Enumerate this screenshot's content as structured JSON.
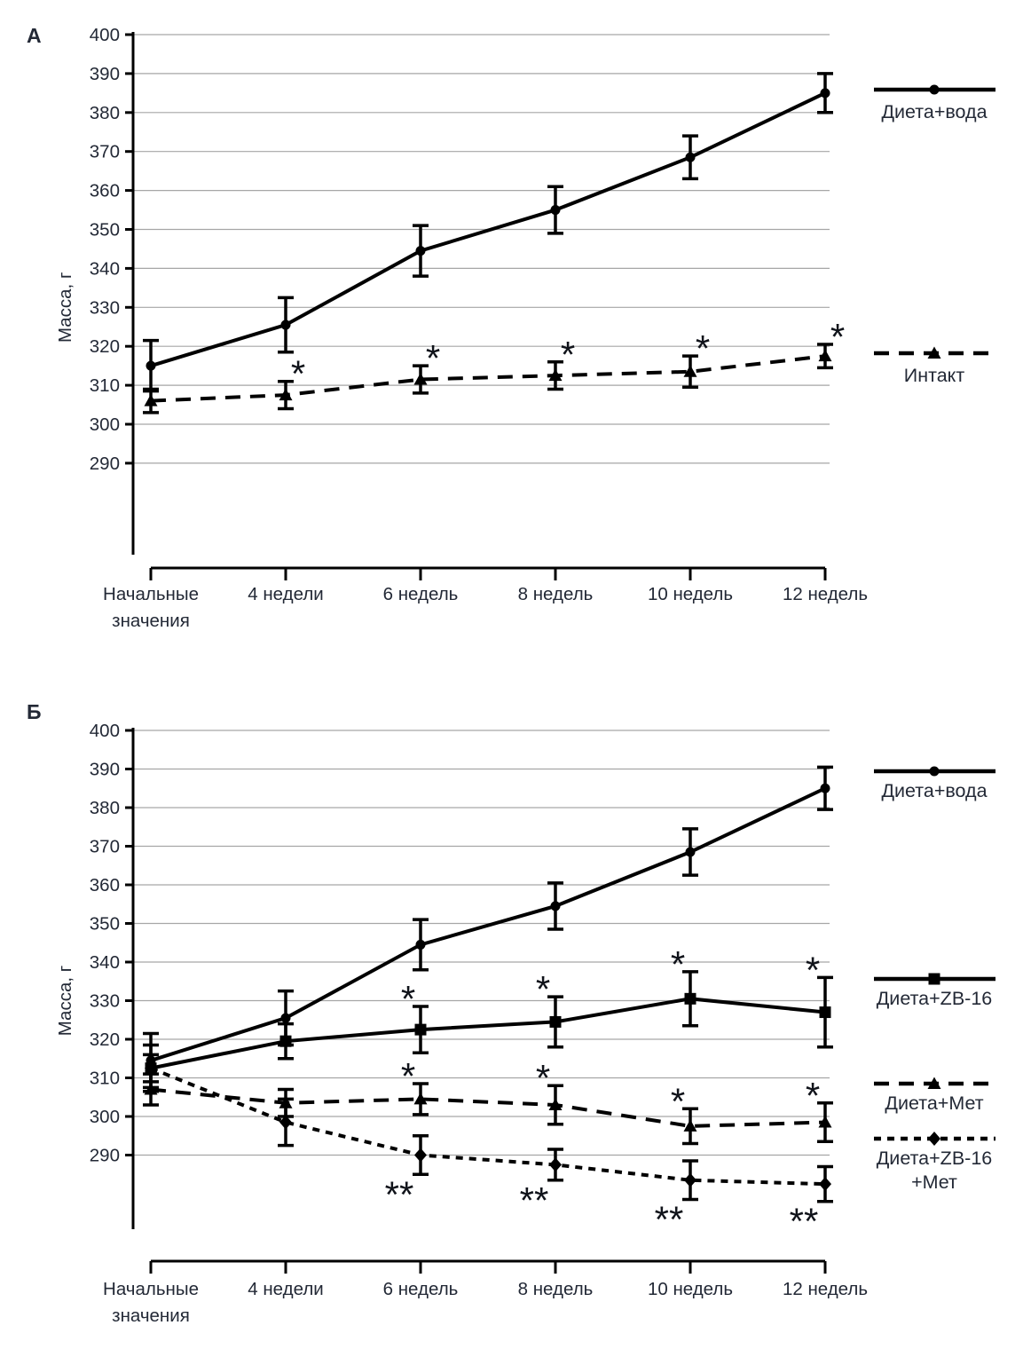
{
  "figure": {
    "title": "",
    "background": "#ffffff"
  },
  "colors": {
    "line": "#000000",
    "grid": "#a6a6a6",
    "text": "#232936",
    "annotation": "#10131a"
  },
  "chart_data": [
    {
      "type": "line",
      "panel_label": "А",
      "ylabel": "Масса, г",
      "ylim": [
        290,
        400
      ],
      "y_ticks": [
        400,
        390,
        380,
        370,
        360,
        350,
        340,
        330,
        320,
        310,
        300,
        290
      ],
      "grid": true,
      "legend_position": "right",
      "categories": [
        "Начальные\nзначения",
        "4 недели",
        "6 недель",
        "8 недель",
        "10 недель",
        "12 недель"
      ],
      "series": [
        {
          "name": "Диета+вода",
          "legend_label": "Диета+вода",
          "marker": "circle",
          "line_style": "solid",
          "values": [
            315,
            325.5,
            344.5,
            355,
            368.5,
            385
          ],
          "errors": [
            6.5,
            7,
            6.5,
            6,
            5.5,
            5
          ],
          "annotations": [
            "",
            "",
            "",
            "",
            "",
            ""
          ],
          "annotation_side": "above"
        },
        {
          "name": "Интакт",
          "legend_label": "Интакт",
          "marker": "triangle",
          "line_style": "long-dash",
          "values": [
            306,
            307.5,
            311.5,
            312.5,
            313.5,
            317.5
          ],
          "errors": [
            3,
            3.5,
            3.5,
            3.5,
            4,
            3
          ],
          "annotations": [
            "",
            "*",
            "*",
            "*",
            "*",
            "*"
          ],
          "annotation_side": "above"
        }
      ]
    },
    {
      "type": "line",
      "panel_label": "Б",
      "ylabel": "Масса, г",
      "ylim": [
        290,
        400
      ],
      "y_ticks": [
        400,
        390,
        380,
        370,
        360,
        350,
        340,
        330,
        320,
        310,
        300,
        290
      ],
      "grid": true,
      "legend_position": "right",
      "categories": [
        "Начальные\nзначения",
        "4 недели",
        "6 недель",
        "8 недель",
        "10 недель",
        "12 недель"
      ],
      "series": [
        {
          "name": "Диета+вода",
          "legend_label": "Диета+вода",
          "marker": "circle",
          "line_style": "solid",
          "values": [
            314.5,
            325.5,
            344.5,
            354.5,
            368.5,
            385
          ],
          "errors": [
            7,
            7,
            6.5,
            6,
            6,
            5.5
          ],
          "annotations": [
            "",
            "",
            "",
            "",
            "",
            ""
          ],
          "annotation_side": "above"
        },
        {
          "name": "Диета+ZB-16",
          "legend_label": "Диета+ZB-16",
          "marker": "square",
          "line_style": "solid",
          "values": [
            312.5,
            319.5,
            322.5,
            324.5,
            330.5,
            327
          ],
          "errors": [
            6,
            4.5,
            6,
            6.5,
            7,
            9
          ],
          "annotations": [
            "",
            "",
            "*",
            "*",
            "*",
            "*"
          ],
          "annotation_side": "above"
        },
        {
          "name": "Диета+Мет",
          "legend_label": "Диета+Мет",
          "marker": "triangle",
          "line_style": "long-dash",
          "values": [
            307,
            303.5,
            304.5,
            303,
            297.5,
            298.5
          ],
          "errors": [
            4,
            3.5,
            4,
            5,
            4.5,
            5
          ],
          "annotations": [
            "",
            "",
            "*",
            "*",
            "*",
            "*"
          ],
          "annotation_side": "above"
        },
        {
          "name": "Диета+ZB-16+Мет",
          "legend_label": "Диета+ZB-16\n+Мет",
          "marker": "diamond",
          "line_style": "short-dash",
          "values": [
            312.5,
            298.5,
            290,
            287.5,
            283.5,
            282.5
          ],
          "errors": [
            3.5,
            6,
            5,
            4,
            5,
            4.5
          ],
          "annotations": [
            "",
            "",
            "**",
            "**",
            "**",
            "**"
          ],
          "annotation_side": "below"
        }
      ]
    }
  ]
}
